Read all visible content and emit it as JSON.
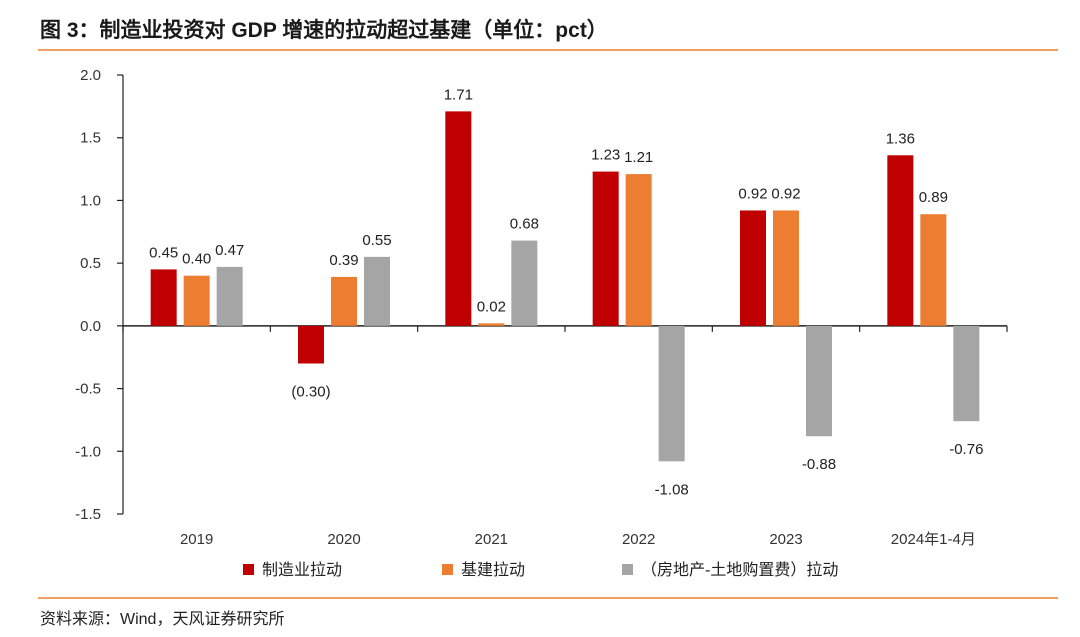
{
  "title": "图 3：制造业投资对 GDP 增速的拉动超过基建（单位：pct）",
  "source": "资料来源：Wind，天风证券研究所",
  "chart_data": {
    "type": "bar",
    "categories": [
      "2019",
      "2020",
      "2021",
      "2022",
      "2023",
      "2024年1-4月"
    ],
    "series": [
      {
        "name": "制造业拉动",
        "color": "#c00000",
        "values": [
          0.45,
          -0.3,
          1.71,
          1.23,
          0.92,
          1.36
        ],
        "labels": [
          "0.45",
          "(0.30)",
          "1.71",
          "1.23",
          "0.92",
          "1.36"
        ]
      },
      {
        "name": "基建拉动",
        "color": "#ed7d31",
        "values": [
          0.4,
          0.39,
          0.02,
          1.21,
          0.92,
          0.89
        ],
        "labels": [
          "0.40",
          "0.39",
          "0.02",
          "1.21",
          "0.92",
          "0.89"
        ]
      },
      {
        "name": "（房地产-土地购置费）拉动",
        "color": "#a5a5a5",
        "values": [
          0.47,
          0.55,
          0.68,
          -1.08,
          -0.88,
          -0.76
        ],
        "labels": [
          "0.47",
          "0.55",
          "0.68",
          "-1.08",
          "-0.88",
          "-0.76"
        ]
      }
    ],
    "ylim": [
      -1.5,
      2.0
    ],
    "yticks": [
      "2.0",
      "1.5",
      "1.0",
      "0.5",
      "0.0",
      "-0.5",
      "-1.0",
      "-1.5"
    ],
    "grid": false,
    "legend": "bottom"
  }
}
